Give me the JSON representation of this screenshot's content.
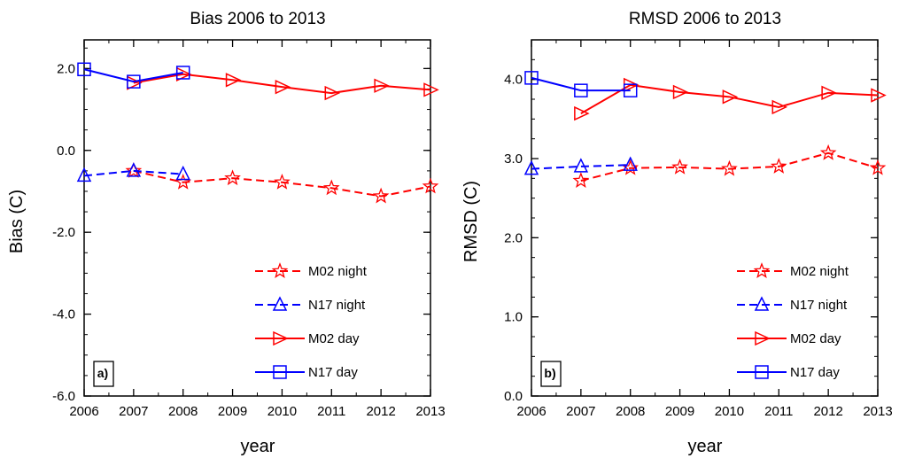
{
  "chart_data": [
    {
      "type": "line",
      "panel_label": "a)",
      "title": "Bias 2006 to 2013",
      "xlabel": "year",
      "ylabel": "Bias (C)",
      "xlim": [
        2006,
        2013
      ],
      "ylim": [
        -6.0,
        2.7
      ],
      "x_ticks": [
        "2006",
        "2007",
        "2008",
        "2009",
        "2010",
        "2011",
        "2012",
        "2013"
      ],
      "y_ticks": [
        "-6.0",
        "-4.0",
        "-2.0",
        "0.0",
        "2.0"
      ],
      "y_tick_values": [
        -6.0,
        -4.0,
        -2.0,
        0.0,
        2.0
      ],
      "legend_position": "lower-right",
      "series": [
        {
          "name": "M02 night",
          "color": "#ff0000",
          "dash": "dashed",
          "marker": "star",
          "x": [
            2007,
            2008,
            2009,
            2010,
            2011,
            2012,
            2013
          ],
          "y": [
            -0.5,
            -0.78,
            -0.68,
            -0.78,
            -0.92,
            -1.12,
            -0.88
          ]
        },
        {
          "name": "N17 night",
          "color": "#0000ff",
          "dash": "dashed",
          "marker": "triangle",
          "x": [
            2006,
            2007,
            2008
          ],
          "y": [
            -0.62,
            -0.5,
            -0.58
          ]
        },
        {
          "name": "M02 day",
          "color": "#ff0000",
          "dash": "solid",
          "marker": "triangle-right",
          "x": [
            2007,
            2008,
            2009,
            2010,
            2011,
            2012,
            2013
          ],
          "y": [
            1.65,
            1.86,
            1.72,
            1.55,
            1.4,
            1.58,
            1.48
          ]
        },
        {
          "name": "N17 day",
          "color": "#0000ff",
          "dash": "solid",
          "marker": "square",
          "x": [
            2006,
            2007,
            2008
          ],
          "y": [
            1.98,
            1.68,
            1.9
          ]
        }
      ]
    },
    {
      "type": "line",
      "panel_label": "b)",
      "title": "RMSD 2006 to 2013",
      "xlabel": "year",
      "ylabel": "RMSD (C)",
      "xlim": [
        2006,
        2013
      ],
      "ylim": [
        0.0,
        4.5
      ],
      "x_ticks": [
        "2006",
        "2007",
        "2008",
        "2009",
        "2010",
        "2011",
        "2012",
        "2013"
      ],
      "y_ticks": [
        "0.0",
        "1.0",
        "2.0",
        "3.0",
        "4.0"
      ],
      "y_tick_values": [
        0.0,
        1.0,
        2.0,
        3.0,
        4.0
      ],
      "legend_position": "lower-right",
      "series": [
        {
          "name": "M02 night",
          "color": "#ff0000",
          "dash": "dashed",
          "marker": "star",
          "x": [
            2007,
            2008,
            2009,
            2010,
            2011,
            2012,
            2013
          ],
          "y": [
            2.72,
            2.88,
            2.89,
            2.87,
            2.9,
            3.07,
            2.88
          ]
        },
        {
          "name": "N17 night",
          "color": "#0000ff",
          "dash": "dashed",
          "marker": "triangle",
          "x": [
            2006,
            2007,
            2008
          ],
          "y": [
            2.87,
            2.9,
            2.92
          ]
        },
        {
          "name": "M02 day",
          "color": "#ff0000",
          "dash": "solid",
          "marker": "triangle-right",
          "x": [
            2007,
            2008,
            2009,
            2010,
            2011,
            2012,
            2013
          ],
          "y": [
            3.57,
            3.93,
            3.84,
            3.78,
            3.65,
            3.83,
            3.8
          ]
        },
        {
          "name": "N17 day",
          "color": "#0000ff",
          "dash": "solid",
          "marker": "square",
          "x": [
            2006,
            2007,
            2008
          ],
          "y": [
            4.02,
            3.86,
            3.86
          ]
        }
      ]
    }
  ]
}
